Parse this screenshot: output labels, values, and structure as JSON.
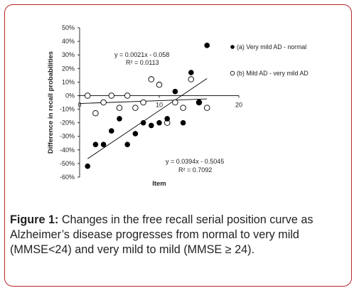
{
  "chart_data": {
    "type": "scatter",
    "title": "",
    "xlabel": "Item",
    "ylabel": "Difference in recall probabilities",
    "xlim": [
      0,
      20
    ],
    "ylim": [
      -60,
      50
    ],
    "x_ticks": [
      "0",
      "10",
      "20"
    ],
    "y_ticks": [
      "-60%",
      "-50%",
      "-40%",
      "-30%",
      "-20%",
      "-10%",
      "0%",
      "10%",
      "20%",
      "30%",
      "40%",
      "50%"
    ],
    "legend": {
      "placement": "right"
    },
    "series": [
      {
        "name": "(a) Very mild AD - normal",
        "marker": "filled-circle",
        "color": "#000000",
        "x": [
          1,
          2,
          3,
          4,
          5,
          6,
          7,
          8,
          9,
          10,
          11,
          12,
          13,
          14,
          15,
          16
        ],
        "y": [
          -52,
          -36,
          -36,
          -26,
          -17,
          -36,
          -28,
          -20,
          -22,
          -20,
          -17,
          3,
          -20,
          17,
          -5,
          37
        ],
        "trendline": {
          "equation": "y = 0.0394x - 0.5045",
          "r2": "R² = 0.7092",
          "slope": 3.94,
          "intercept": -50.45,
          "x_range": [
            1,
            16
          ]
        }
      },
      {
        "name": "(b) Mild AD - very mild AD",
        "marker": "open-circle",
        "color": "#000000",
        "x": [
          1,
          2,
          3,
          4,
          5,
          6,
          7,
          8,
          9,
          10,
          11,
          12,
          13,
          14,
          15,
          16
        ],
        "y": [
          0,
          -13,
          -5,
          0,
          -9,
          0,
          -9,
          -5,
          12,
          8,
          -20,
          -5,
          -9,
          12,
          -5,
          -9
        ],
        "trendline": {
          "equation": "y = 0.0021x - 0.058",
          "r2": "R² = 0.0113",
          "slope": 0.21,
          "intercept": -5.8,
          "x_range": [
            0,
            16
          ]
        }
      }
    ]
  },
  "caption": {
    "lead": "Figure 1:",
    "text": " Changes in the free recall serial position curve as Alzheimer’s disease progresses from normal to very mild (MMSE<24) and very mild to mild (MMSE ≥ 24)."
  }
}
